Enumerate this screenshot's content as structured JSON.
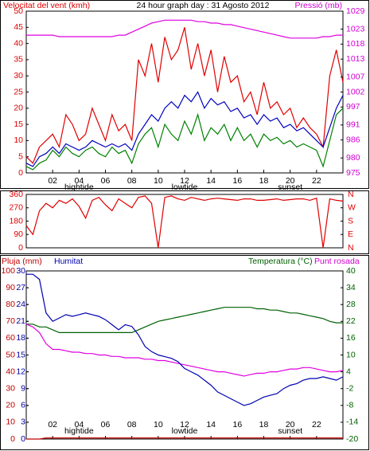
{
  "chart_data": [
    {
      "type": "line",
      "title": "24 hour graph day : 31 Agosto 2012",
      "ylabel": "Velocitat del vent (kmh)",
      "y2label": "Pressió (mb)",
      "xlim": [
        0,
        24
      ],
      "xticks": [
        {
          "value": 2,
          "label": "02"
        },
        {
          "value": 4,
          "label": "04"
        },
        {
          "value": 6,
          "label": "06"
        },
        {
          "value": 8,
          "label": "08"
        },
        10,
        12,
        14,
        16,
        18,
        20,
        22
      ],
      "annotations": [
        {
          "text": "hightide",
          "x": 4
        },
        {
          "text": "lowtide",
          "x": 12
        },
        {
          "text": "sunset",
          "x": 20
        }
      ],
      "ylim": [
        0,
        50
      ],
      "yticks": [
        0,
        5,
        10,
        15,
        20,
        25,
        30,
        35,
        40,
        45,
        50
      ],
      "ytick_color": "#e00000",
      "y2lim": [
        975,
        1029
      ],
      "y2ticks": [
        975,
        980,
        986,
        991,
        997,
        1002,
        1007,
        1013,
        1018,
        1023,
        1029
      ],
      "y2tick_color": "#d000d0",
      "x": [
        0,
        0.5,
        1,
        1.5,
        2,
        2.5,
        3,
        3.5,
        4,
        4.5,
        5,
        5.5,
        6,
        6.5,
        7,
        7.5,
        8,
        8.5,
        9,
        9.5,
        10,
        10.5,
        11,
        11.5,
        12,
        12.5,
        13,
        13.5,
        14,
        14.5,
        15,
        15.5,
        16,
        16.5,
        17,
        17.5,
        18,
        18.5,
        19,
        19.5,
        20,
        20.5,
        21,
        21.5,
        22,
        22.5,
        23,
        23.5,
        24
      ],
      "series": [
        {
          "color": "#e00000",
          "values": [
            5,
            3,
            8,
            10,
            12,
            8,
            18,
            15,
            10,
            12,
            20,
            15,
            10,
            18,
            13,
            15,
            10,
            35,
            30,
            40,
            28,
            42,
            35,
            38,
            45,
            32,
            40,
            30,
            38,
            25,
            36,
            28,
            30,
            22,
            25,
            18,
            28,
            20,
            22,
            18,
            20,
            14,
            17,
            14,
            12,
            8,
            30,
            38,
            28
          ]
        },
        {
          "color": "#008000",
          "values": [
            2,
            1,
            3,
            4,
            7,
            5,
            8,
            6,
            5,
            7,
            8,
            6,
            5,
            8,
            6,
            7,
            3,
            9,
            12,
            14,
            8,
            15,
            12,
            10,
            16,
            12,
            18,
            10,
            14,
            12,
            15,
            10,
            14,
            10,
            12,
            8,
            12,
            10,
            11,
            9,
            10,
            8,
            9,
            8,
            7,
            2,
            10,
            18,
            20
          ]
        },
        {
          "color": "#0000c0",
          "values": [
            3,
            2,
            5,
            6,
            8,
            6,
            9,
            8,
            7,
            8,
            10,
            9,
            8,
            9,
            8,
            9,
            7,
            12,
            15,
            18,
            16,
            20,
            22,
            20,
            24,
            22,
            25,
            20,
            23,
            21,
            22,
            19,
            20,
            17,
            18,
            15,
            18,
            16,
            17,
            14,
            15,
            13,
            14,
            12,
            10,
            8,
            14,
            20,
            24
          ]
        },
        {
          "color": "#e000e0",
          "axis": "y2",
          "values": [
            1021,
            1021,
            1021,
            1021,
            1021,
            1020.5,
            1020.5,
            1020.5,
            1020.5,
            1020.5,
            1020.5,
            1020.5,
            1020.5,
            1020.5,
            1021,
            1021,
            1022,
            1023,
            1024,
            1025,
            1025.5,
            1026,
            1026,
            1026,
            1026,
            1026,
            1025.5,
            1025.5,
            1025,
            1025,
            1024.5,
            1024.5,
            1024,
            1023.5,
            1023,
            1022.5,
            1022,
            1021.5,
            1021,
            1020.5,
            1020,
            1020,
            1020,
            1020,
            1020,
            1020.5,
            1020.5,
            1021,
            1021
          ]
        }
      ]
    },
    {
      "type": "line",
      "xlim": [
        0,
        24
      ],
      "ylim": [
        0,
        360
      ],
      "yticks": [
        0,
        90,
        180,
        270,
        360
      ],
      "ytick_color": "#e00000",
      "y2lim": [
        0,
        360
      ],
      "y2ticks": [
        {
          "value": 0,
          "label": "N"
        },
        {
          "value": 90,
          "label": "E"
        },
        {
          "value": 180,
          "label": "S"
        },
        {
          "value": 270,
          "label": "W"
        },
        {
          "value": 360,
          "label": "N"
        }
      ],
      "y2tick_color": "#e00000",
      "x": [
        0,
        0.5,
        1,
        1.5,
        2,
        2.5,
        3,
        3.5,
        4,
        4.5,
        5,
        5.5,
        6,
        6.5,
        7,
        7.5,
        8,
        8.5,
        9,
        9.5,
        10,
        10.5,
        11,
        11.5,
        12,
        12.5,
        13,
        13.5,
        14,
        14.5,
        15,
        15.5,
        16,
        16.5,
        17,
        17.5,
        18,
        18.5,
        19,
        19.5,
        20,
        20.5,
        21,
        21.5,
        22,
        22.5,
        23,
        23.5,
        24
      ],
      "series": [
        {
          "color": "#e00000",
          "values": [
            150,
            90,
            250,
            300,
            270,
            320,
            300,
            330,
            280,
            200,
            320,
            340,
            290,
            250,
            330,
            300,
            270,
            340,
            350,
            300,
            0,
            340,
            350,
            330,
            320,
            340,
            330,
            320,
            330,
            335,
            330,
            325,
            320,
            330,
            330,
            320,
            320,
            325,
            330,
            320,
            325,
            330,
            330,
            320,
            335,
            0,
            330,
            320,
            315
          ]
        }
      ]
    },
    {
      "type": "line",
      "y2label": "Pluja (mm)",
      "ylabel": "Humitat",
      "y3label": "Temperatura (°C)",
      "y3label_b": "Punt rosada",
      "xlim": [
        0,
        24
      ],
      "xticks": [
        {
          "value": 2,
          "label": "02"
        },
        {
          "value": 4,
          "label": "04"
        },
        {
          "value": 6,
          "label": "06"
        },
        {
          "value": 8,
          "label": "08"
        },
        10,
        12,
        14,
        16,
        18,
        20,
        22
      ],
      "annotations": [
        {
          "text": "hightide",
          "x": 4
        },
        {
          "text": "lowtide",
          "x": 12
        },
        {
          "text": "sunset",
          "x": 20
        }
      ],
      "ylim": [
        0,
        100
      ],
      "yticks": [
        0,
        10,
        20,
        30,
        40,
        50,
        60,
        70,
        80,
        90,
        100
      ],
      "ytick_color": "#c00000",
      "y2lim": [
        0,
        30
      ],
      "y2ticks": [
        0,
        3,
        6,
        9,
        12,
        15,
        18,
        21,
        24,
        27,
        30
      ],
      "y2tick_color": "#0000a0",
      "y3lim": [
        -20,
        40
      ],
      "y3ticks": [
        -20,
        -14,
        -8,
        -2,
        4,
        10,
        16,
        22,
        28,
        34,
        40
      ],
      "y3tick_color": "#006000",
      "x": [
        0,
        0.5,
        1,
        1.5,
        2,
        2.5,
        3,
        3.5,
        4,
        4.5,
        5,
        5.5,
        6,
        6.5,
        7,
        7.5,
        8,
        8.5,
        9,
        9.5,
        10,
        10.5,
        11,
        11.5,
        12,
        12.5,
        13,
        13.5,
        14,
        14.5,
        15,
        15.5,
        16,
        16.5,
        17,
        17.5,
        18,
        18.5,
        19,
        19.5,
        20,
        20.5,
        21,
        21.5,
        22,
        22.5,
        23,
        23.5,
        24
      ],
      "series": [
        {
          "color": "#c00000",
          "axis": "y2",
          "values": [
            0,
            0,
            0,
            0.2,
            0.2,
            0.2,
            0.2,
            0.2,
            0.2,
            0.2,
            0.2,
            0.2,
            0.2,
            0.2,
            0.2,
            0.2,
            0.2,
            0.2,
            0.2,
            0.2,
            0.2,
            0.2,
            0.2,
            0.2,
            0.2,
            0.2,
            0.2,
            0.2,
            0.2,
            0.2,
            0.2,
            0.2,
            0.2,
            0.2,
            0.2,
            0.2,
            0.2,
            0.2,
            0.2,
            0.2,
            0.2,
            0.2,
            0.2,
            0.2,
            0.2,
            0.2,
            0.2,
            0.2,
            0.2
          ]
        },
        {
          "color": "#006000",
          "axis": "y3",
          "values": [
            21,
            21,
            20,
            20,
            19,
            18,
            18,
            18,
            18,
            18,
            18,
            18,
            18,
            18,
            18,
            18,
            18,
            19,
            20,
            21,
            22,
            22.5,
            23,
            23.5,
            24,
            24.5,
            25,
            25.5,
            26,
            26.5,
            27,
            27,
            27,
            27,
            27,
            26.5,
            26.5,
            26,
            26,
            25.5,
            25,
            25,
            24.5,
            24,
            23.5,
            23,
            22,
            21.5,
            21.5
          ]
        },
        {
          "color": "#e000e0",
          "axis": "y3",
          "values": [
            21,
            20,
            18,
            14,
            12,
            12,
            11.5,
            11,
            11,
            10.5,
            10.5,
            10,
            10,
            9.5,
            9.5,
            9,
            9,
            9,
            8.5,
            8.5,
            8,
            8,
            7.5,
            7,
            6.5,
            6,
            5.5,
            5,
            4.5,
            4,
            4,
            3.5,
            3,
            2.5,
            3,
            3.5,
            3.5,
            4,
            4,
            4.5,
            5,
            5,
            5.5,
            5.5,
            5,
            4.5,
            4,
            4,
            4.5
          ]
        },
        {
          "color": "#0000b0",
          "values": [
            98,
            98,
            95,
            75,
            70,
            72,
            74,
            73,
            74,
            75,
            74,
            73,
            71,
            68,
            65,
            68,
            67,
            62,
            55,
            52,
            50,
            49,
            48,
            46,
            42,
            40,
            38,
            35,
            32,
            28,
            26,
            24,
            22,
            20,
            21,
            23,
            25,
            26,
            27,
            30,
            32,
            33,
            35,
            36,
            36,
            37,
            36,
            35,
            37
          ]
        }
      ]
    }
  ]
}
